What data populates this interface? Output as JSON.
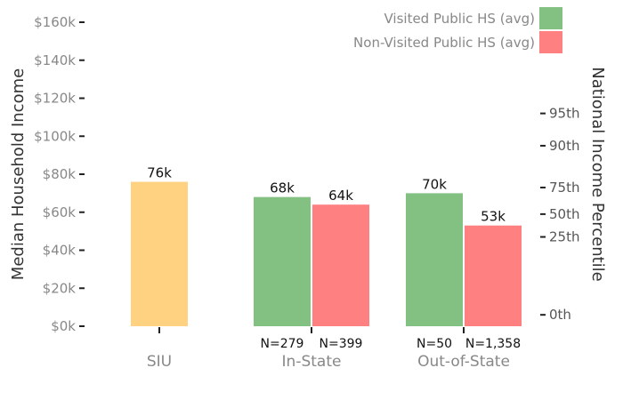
{
  "chart_data": {
    "type": "bar",
    "ylabel": "Median Household Income",
    "ylabel_right": "National Income Percentile",
    "ylim": [
      0,
      160000
    ],
    "y_ticks": [
      {
        "value": 0,
        "label": "$0k"
      },
      {
        "value": 20000,
        "label": "$20k"
      },
      {
        "value": 40000,
        "label": "$40k"
      },
      {
        "value": 60000,
        "label": "$60k"
      },
      {
        "value": 80000,
        "label": "$80k"
      },
      {
        "value": 100000,
        "label": "$100k"
      },
      {
        "value": 120000,
        "label": "$120k"
      },
      {
        "value": 140000,
        "label": "$140k"
      },
      {
        "value": 160000,
        "label": "$160k"
      }
    ],
    "right_ticks": [
      {
        "value": 6000,
        "label": "0th"
      },
      {
        "value": 47000,
        "label": "25th"
      },
      {
        "value": 59000,
        "label": "50th"
      },
      {
        "value": 73000,
        "label": "75th"
      },
      {
        "value": 95000,
        "label": "90th"
      },
      {
        "value": 112000,
        "label": "95th"
      }
    ],
    "categories": [
      "SIU",
      "In-State",
      "Out-of-State"
    ],
    "legend": [
      {
        "name": "Visited Public HS (avg)",
        "color": "#82c181"
      },
      {
        "name": "Non-Visited Public HS (avg)",
        "color": "#ff8080"
      }
    ],
    "legend_position": "top-right",
    "grid": false,
    "bars": [
      {
        "category": "SIU",
        "value": 76000,
        "label": "76k",
        "n": "",
        "color": "#fed280"
      },
      {
        "category": "In-State",
        "value": 68000,
        "label": "68k",
        "n": "N=279",
        "color": "#82c181"
      },
      {
        "category": "In-State",
        "value": 64000,
        "label": "64k",
        "n": "N=399",
        "color": "#ff8080"
      },
      {
        "category": "Out-of-State",
        "value": 70000,
        "label": "70k",
        "n": "N=50",
        "color": "#82c181"
      },
      {
        "category": "Out-of-State",
        "value": 53000,
        "label": "53k",
        "n": "N=1,358",
        "color": "#ff8080"
      }
    ]
  }
}
